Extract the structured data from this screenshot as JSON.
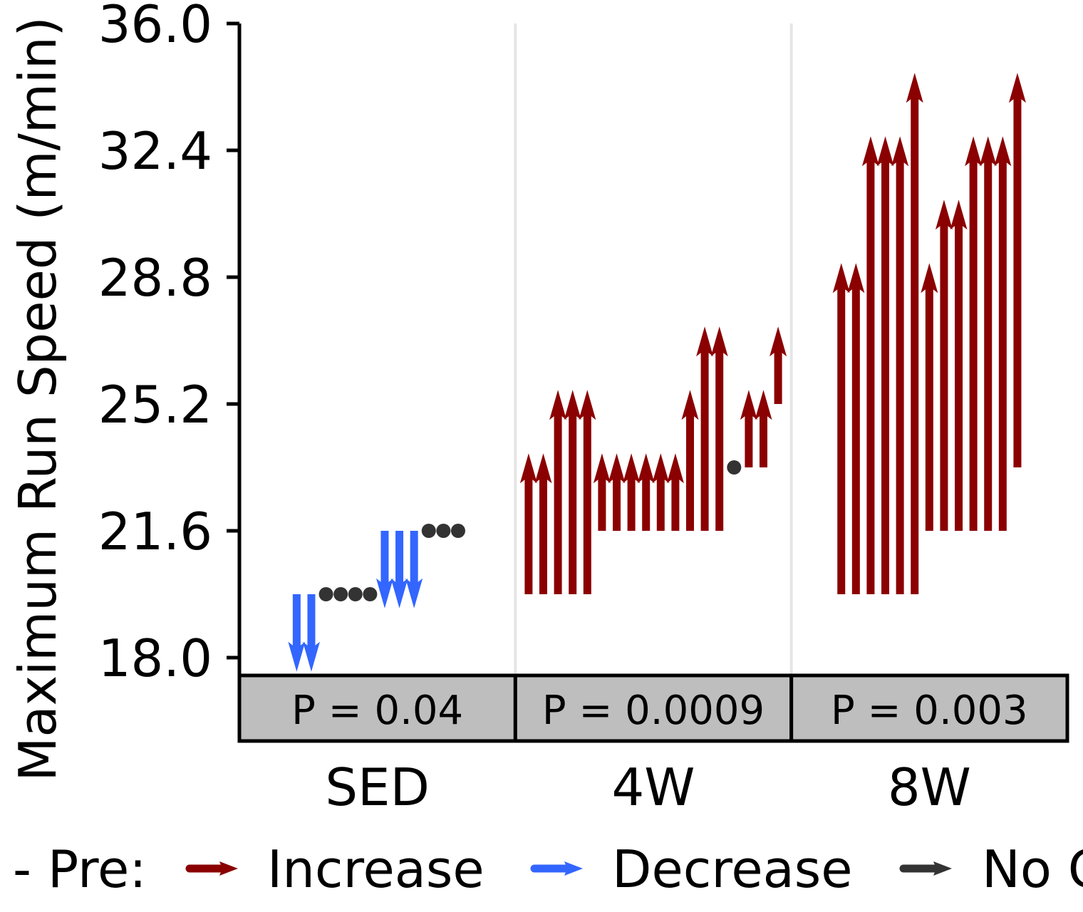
{
  "chart_data": {
    "type": "arrow",
    "ylabel": "Maximum Run Speed (m/min)",
    "ylim": [
      18.0,
      36.0
    ],
    "yticks": [
      "18.0",
      "21.6",
      "25.2",
      "28.8",
      "32.4",
      "36.0"
    ],
    "categories": [
      "SED",
      "4W",
      "8W"
    ],
    "p_values": [
      "P = 0.04",
      "P = 0.0009",
      "P = 0.003"
    ],
    "legend": {
      "title": "- Pre:",
      "entries": [
        {
          "label": "Increase",
          "color": "#8B0000"
        },
        {
          "label": "Decrease",
          "color": "#3366FF"
        },
        {
          "label": "No Change",
          "color": "#333333"
        }
      ]
    },
    "groups": [
      {
        "name": "SED",
        "pairs": [
          {
            "pre": 19.8,
            "post": 17.6
          },
          {
            "pre": 19.8,
            "post": 17.6
          },
          {
            "pre": 19.8,
            "post": 19.8
          },
          {
            "pre": 19.8,
            "post": 19.8
          },
          {
            "pre": 19.8,
            "post": 19.8
          },
          {
            "pre": 19.8,
            "post": 19.8
          },
          {
            "pre": 21.6,
            "post": 19.4
          },
          {
            "pre": 21.6,
            "post": 19.4
          },
          {
            "pre": 21.6,
            "post": 19.4
          },
          {
            "pre": 21.6,
            "post": 21.6
          },
          {
            "pre": 21.6,
            "post": 21.6
          },
          {
            "pre": 21.6,
            "post": 21.6
          }
        ]
      },
      {
        "name": "4W",
        "pairs": [
          {
            "pre": 19.8,
            "post": 23.8
          },
          {
            "pre": 19.8,
            "post": 23.8
          },
          {
            "pre": 19.8,
            "post": 25.6
          },
          {
            "pre": 19.8,
            "post": 25.6
          },
          {
            "pre": 19.8,
            "post": 25.6
          },
          {
            "pre": 21.6,
            "post": 23.8
          },
          {
            "pre": 21.6,
            "post": 23.8
          },
          {
            "pre": 21.6,
            "post": 23.8
          },
          {
            "pre": 21.6,
            "post": 23.8
          },
          {
            "pre": 21.6,
            "post": 23.8
          },
          {
            "pre": 21.6,
            "post": 23.8
          },
          {
            "pre": 21.6,
            "post": 25.6
          },
          {
            "pre": 21.6,
            "post": 27.4
          },
          {
            "pre": 21.6,
            "post": 27.4
          },
          {
            "pre": 23.4,
            "post": 23.4
          },
          {
            "pre": 23.4,
            "post": 25.6
          },
          {
            "pre": 23.4,
            "post": 25.6
          },
          {
            "pre": 25.2,
            "post": 27.4
          }
        ]
      },
      {
        "name": "8W",
        "pairs": [
          {
            "pre": 19.8,
            "post": 29.2
          },
          {
            "pre": 19.8,
            "post": 29.2
          },
          {
            "pre": 19.8,
            "post": 32.8
          },
          {
            "pre": 19.8,
            "post": 32.8
          },
          {
            "pre": 19.8,
            "post": 32.8
          },
          {
            "pre": 19.8,
            "post": 34.6
          },
          {
            "pre": 21.6,
            "post": 29.2
          },
          {
            "pre": 21.6,
            "post": 31.0
          },
          {
            "pre": 21.6,
            "post": 31.0
          },
          {
            "pre": 21.6,
            "post": 32.8
          },
          {
            "pre": 21.6,
            "post": 32.8
          },
          {
            "pre": 21.6,
            "post": 32.8
          },
          {
            "pre": 23.4,
            "post": 34.6
          }
        ]
      }
    ]
  }
}
